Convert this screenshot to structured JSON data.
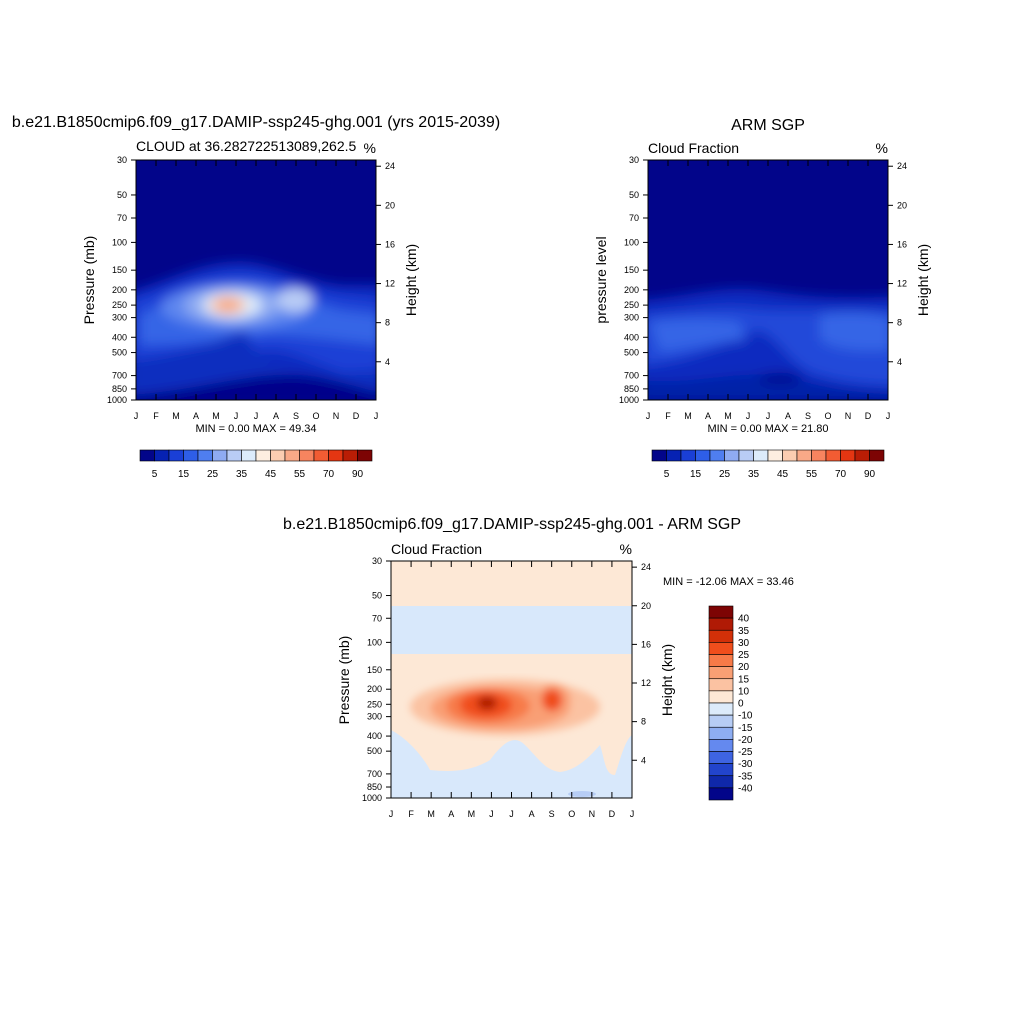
{
  "months": [
    "J",
    "F",
    "M",
    "A",
    "M",
    "J",
    "J",
    "A",
    "S",
    "O",
    "N",
    "D",
    "J"
  ],
  "p_ticks": [
    "30",
    "50",
    "70",
    "100",
    "150",
    "200",
    "250",
    "300",
    "400",
    "500",
    "700",
    "850",
    "1000"
  ],
  "h_ticks": [
    "24",
    "20",
    "16",
    "12",
    "8",
    "4"
  ],
  "panels": [
    {
      "title": "b.e21.B1850cmip6.f09_g17.DAMIP-ssp245-ghg.001 (yrs 2015-2039)",
      "left_label": "CLOUD at 36.282722513089,262.5",
      "unit": "%",
      "ylabel": "Pressure (mb)",
      "ylabel2": "Height (km)",
      "stats": "MIN =   0.00 MAX =  49.34",
      "colorbar_labels": [
        "5",
        "15",
        "25",
        "35",
        "45",
        "55",
        "70",
        "90"
      ],
      "background": "#02058a"
    },
    {
      "title": "ARM SGP",
      "left_label": "Cloud Fraction",
      "unit": "%",
      "ylabel": "pressure level",
      "ylabel2": "Height (km)",
      "stats": "MIN =   0.00 MAX =  21.80",
      "colorbar_labels": [
        "5",
        "15",
        "25",
        "35",
        "45",
        "55",
        "70",
        "90"
      ],
      "background": "#02058a"
    },
    {
      "title": "b.e21.B1850cmip6.f09_g17.DAMIP-ssp245-ghg.001 - ARM SGP",
      "left_label": "Cloud Fraction",
      "unit": "%",
      "ylabel": "Pressure (mb)",
      "ylabel2": "Height (km)",
      "stats": "MIN = -12.06 MAX =  33.46",
      "colorbar_labels": [
        "40",
        "35",
        "30",
        "25",
        "20",
        "15",
        "10",
        "0",
        "-10",
        "-15",
        "-20",
        "-25",
        "-30",
        "-35",
        "-40"
      ],
      "background": "#fde8d6"
    }
  ],
  "colors": {
    "abs_scale": [
      "#02058a",
      "#0622b3",
      "#1a3fd6",
      "#2e5ee8",
      "#4f7ef0",
      "#8fabf2",
      "#b9ccf5",
      "#dcebfb",
      "#fdeee0",
      "#fbcdb1",
      "#f9a987",
      "#f7845f",
      "#f25c33",
      "#e43612",
      "#b91d05",
      "#7d0404"
    ],
    "diff_scale": [
      "#7d0404",
      "#b01a05",
      "#d33008",
      "#f04e1c",
      "#f77a48",
      "#f99f74",
      "#fbc2a2",
      "#fde8d6",
      "#dcebfb",
      "#b7cdf5",
      "#8eaef2",
      "#6489ef",
      "#3e64e2",
      "#2244cc",
      "#0f28aa",
      "#02058a"
    ]
  },
  "chart_data": [
    {
      "type": "heatmap",
      "title": "b.e21.B1850cmip6.f09_g17.DAMIP-ssp245-ghg.001 (yrs 2015-2039)",
      "subtitle": "CLOUD at 36.282722513089,262.5",
      "xlabel": "",
      "ylabel": "Pressure (mb)",
      "ylabel_right": "Height (km)",
      "units": "%",
      "x": [
        "J",
        "F",
        "M",
        "A",
        "M",
        "J",
        "J",
        "A",
        "S",
        "O",
        "N",
        "D",
        "J"
      ],
      "y_pressure_levels": [
        30,
        50,
        70,
        100,
        150,
        200,
        250,
        300,
        400,
        500,
        700,
        850,
        1000
      ],
      "y_right_height_km": [
        24,
        20,
        16,
        12,
        8,
        4
      ],
      "min": 0.0,
      "max": 49.34,
      "colorbar_levels": [
        5,
        15,
        25,
        35,
        45,
        55,
        70,
        90
      ],
      "features": [
        {
          "description": "upper-tropospheric cloud maximum",
          "month": "May-Jun",
          "pressure_mb": 220,
          "value": 49.34
        },
        {
          "description": "secondary maximum",
          "month": "Sep",
          "pressure_mb": 210,
          "value": 35
        }
      ]
    },
    {
      "type": "heatmap",
      "title": "ARM SGP",
      "subtitle": "Cloud Fraction",
      "ylabel": "pressure level",
      "ylabel_right": "Height (km)",
      "units": "%",
      "x": [
        "J",
        "F",
        "M",
        "A",
        "M",
        "J",
        "J",
        "A",
        "S",
        "O",
        "N",
        "D",
        "J"
      ],
      "y_pressure_levels": [
        30,
        50,
        70,
        100,
        150,
        200,
        250,
        300,
        400,
        500,
        700,
        850,
        1000
      ],
      "y_right_height_km": [
        24,
        20,
        16,
        12,
        8,
        4
      ],
      "min": 0.0,
      "max": 21.8,
      "colorbar_levels": [
        5,
        15,
        25,
        35,
        45,
        55,
        70,
        90
      ]
    },
    {
      "type": "heatmap",
      "title": "b.e21.B1850cmip6.f09_g17.DAMIP-ssp245-ghg.001 - ARM SGP",
      "subtitle": "Cloud Fraction",
      "ylabel": "Pressure (mb)",
      "ylabel_right": "Height (km)",
      "units": "%",
      "x": [
        "J",
        "F",
        "M",
        "A",
        "M",
        "J",
        "J",
        "A",
        "S",
        "O",
        "N",
        "D",
        "J"
      ],
      "y_pressure_levels": [
        30,
        50,
        70,
        100,
        150,
        200,
        250,
        300,
        400,
        500,
        700,
        850,
        1000
      ],
      "y_right_height_km": [
        24,
        20,
        16,
        12,
        8,
        4
      ],
      "min": -12.06,
      "max": 33.46,
      "colorbar_levels": [
        40,
        35,
        30,
        25,
        20,
        15,
        10,
        0,
        -10,
        -15,
        -20,
        -25,
        -30,
        -35,
        -40
      ],
      "features": [
        {
          "description": "positive difference maximum",
          "month": "May-Jun",
          "pressure_mb": 220,
          "value": 33.46
        },
        {
          "description": "secondary positive maximum",
          "month": "Sep",
          "pressure_mb": 210,
          "value": 25
        }
      ]
    }
  ]
}
